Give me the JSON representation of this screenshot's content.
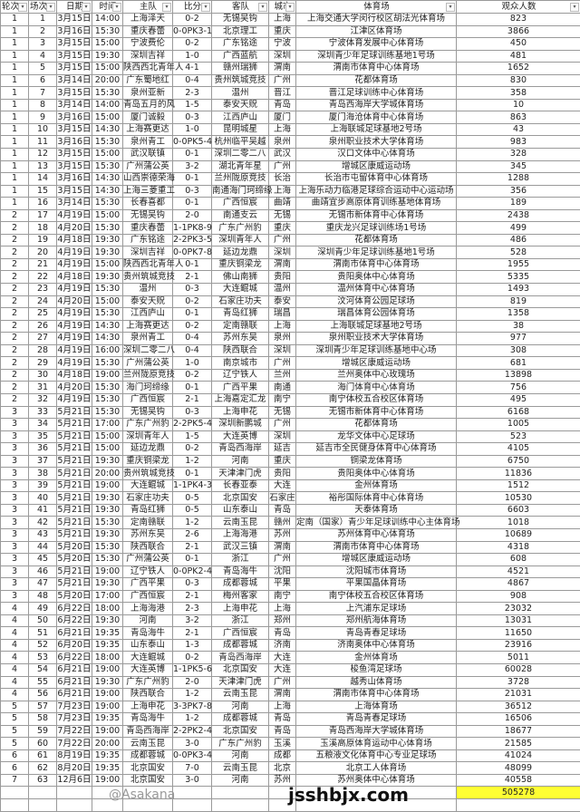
{
  "headers": [
    "轮次",
    "场次",
    "日期",
    "时间",
    "主队",
    "比分",
    "客队",
    "城市",
    "体育场",
    "观众人数"
  ],
  "filter_icon": "dropdown-arrow-icon",
  "rows": [
    [
      "1",
      "1",
      "3月15日",
      "14:00",
      "上海泽天",
      "0-2",
      "无锡吴钩",
      "上海",
      "上海交通大学闵行校区胡法光体育场",
      "823"
    ],
    [
      "1",
      "2",
      "3月16日",
      "15:30",
      "重庆春蕾",
      "0-0PK3-1",
      "北京理工",
      "重庆",
      "江津区体育场",
      "3866"
    ],
    [
      "1",
      "3",
      "3月15日",
      "15:00",
      "宁波费伦",
      "0-2",
      "广东铭途",
      "宁波",
      "宁波体育发展中心体育场",
      "450"
    ],
    [
      "1",
      "4",
      "3月15日",
      "19:30",
      "深圳吉祥",
      "1-0",
      "广西蓝航",
      "深圳",
      "深圳青少年足球训练基地1号场",
      "481"
    ],
    [
      "1",
      "5",
      "3月15日",
      "15:00",
      "陕西西北青年人",
      "4-1",
      "赣州瑞狮",
      "渭南",
      "渭南市体育中心体育场",
      "1652"
    ],
    [
      "1",
      "6",
      "3月14日",
      "20:00",
      "广东蜀地红",
      "0-4",
      "贵州筑城竞技",
      "广州",
      "花都体育场",
      "830"
    ],
    [
      "1",
      "7",
      "3月15日",
      "15:30",
      "泉州亚新",
      "2-3",
      "温州",
      "晋江",
      "晋江足球训练中心体育场",
      "358"
    ],
    [
      "1",
      "8",
      "3月14日",
      "14:00",
      "青岛五月的风",
      "1-5",
      "泰安天贶",
      "青岛",
      "青岛西海岸大学城体育场",
      "10"
    ],
    [
      "1",
      "9",
      "3月16日",
      "15:00",
      "厦门诚毅",
      "0-3",
      "江西庐山",
      "厦门",
      "厦门海沧体育中心体育场",
      "863"
    ],
    [
      "1",
      "10",
      "3月15日",
      "14:30",
      "上海赛更达",
      "1-0",
      "昆明城星",
      "上海",
      "上海联城足球基地2号场",
      "43"
    ],
    [
      "1",
      "11",
      "3月16日",
      "15:30",
      "泉州青工",
      "0-0PK5-4",
      "杭州临平吴越",
      "泉州",
      "泉州职业技术大学体育场",
      "983"
    ],
    [
      "1",
      "12",
      "3月15日",
      "15:00",
      "武汉联镇",
      "0-1",
      "深圳二零二八",
      "武汉",
      "汉口文体中心体育场",
      "328"
    ],
    [
      "1",
      "13",
      "3月15日",
      "15:30",
      "广州蒲公英",
      "3-2",
      "湖北青年星",
      "广州",
      "增城区康威运动场",
      "345"
    ],
    [
      "1",
      "14",
      "3月16日",
      "14:30",
      "山西崇德荣海",
      "0-1",
      "兰州陇原竞技",
      "长治",
      "长治市屯留体育中心体育场",
      "1288"
    ],
    [
      "1",
      "15",
      "3月15日",
      "14:30",
      "上海三菱重工",
      "0-3",
      "南通海门珂缔缘",
      "上海",
      "上海乐动力临港足球综合运动中心运动场",
      "356"
    ],
    [
      "1",
      "16",
      "3月14日",
      "15:30",
      "长春喜都",
      "0-1",
      "广西恒宸",
      "曲靖",
      "曲靖宜步高原体育训练基地体育场",
      "189"
    ],
    [
      "2",
      "17",
      "4月19日",
      "15:00",
      "无锡吴钩",
      "2-0",
      "南通支云",
      "无锡",
      "无锡市新体育中心体育场",
      "2438"
    ],
    [
      "2",
      "18",
      "4月20日",
      "15:30",
      "重庆春蕾",
      "1-1PK8-9",
      "广东广州豹",
      "重庆",
      "重庆龙兴足球训练场1号场",
      "499"
    ],
    [
      "2",
      "19",
      "4月18日",
      "19:30",
      "广东铭途",
      "2-2PK3-5",
      "深圳青年人",
      "广州",
      "花都体育场",
      "486"
    ],
    [
      "2",
      "20",
      "4月19日",
      "19:30",
      "深圳吉祥",
      "0-0PK7-8",
      "延边龙鼎",
      "深圳",
      "深圳青少年足球训练基地1号场",
      "528"
    ],
    [
      "2",
      "21",
      "4月19日",
      "15:00",
      "陕西西北青年人",
      "0-1",
      "重庆铜梁龙",
      "渭南",
      "渭南市体育中心体育场",
      "1955"
    ],
    [
      "2",
      "22",
      "4月18日",
      "19:30",
      "贵州筑城竞技",
      "2-1",
      "佛山南狮",
      "贵阳",
      "贵阳奥体中心体育场",
      "5335"
    ],
    [
      "2",
      "23",
      "4月19日",
      "15:30",
      "温州",
      "0-3",
      "大连鲲城",
      "温州",
      "温州体育中心体育场",
      "1493"
    ],
    [
      "2",
      "24",
      "4月20日",
      "15:00",
      "泰安天贶",
      "0-2",
      "石家庄功夫",
      "泰安",
      "汶河体育公园足球场",
      "819"
    ],
    [
      "2",
      "25",
      "4月19日",
      "15:30",
      "江西庐山",
      "0-1",
      "青岛红狮",
      "瑞昌",
      "瑞昌体育公园体育场",
      "1358"
    ],
    [
      "2",
      "26",
      "4月19日",
      "14:30",
      "上海赛更达",
      "0-2",
      "定南赣联",
      "上海",
      "上海联城足球基地2号场",
      "38"
    ],
    [
      "2",
      "27",
      "4月19日",
      "14:30",
      "泉州青工",
      "0-4",
      "苏州东吴",
      "泉州",
      "泉州职业技术大学体育场",
      "977"
    ],
    [
      "2",
      "28",
      "4月19日",
      "16:00",
      "深圳二零二八",
      "0-4",
      "陕西联合",
      "深圳",
      "深圳青少年足球训练基地中心场",
      "308"
    ],
    [
      "2",
      "29",
      "4月19日",
      "15:30",
      "广州蒲公英",
      "1-0",
      "南京城市",
      "广州",
      "增城区康威运动场",
      "681"
    ],
    [
      "2",
      "30",
      "4月18日",
      "19:00",
      "兰州陇原竞技",
      "0-2",
      "辽宁铁人",
      "兰州",
      "兰州奥体中心玫瑰场",
      "13898"
    ],
    [
      "2",
      "31",
      "4月20日",
      "15:30",
      "海门珂缔缘",
      "0-1",
      "广西平果",
      "南通",
      "海门体育中心体育场",
      "756"
    ],
    [
      "2",
      "32",
      "4月19日",
      "15:30",
      "广西恒宸",
      "2-1",
      "上海嘉定汇龙",
      "南宁",
      "南宁体校五合校区体育场",
      "495"
    ],
    [
      "3",
      "33",
      "5月21日",
      "15:30",
      "无锡吴钩",
      "0-3",
      "上海申花",
      "无锡",
      "无锡市新体育中心体育场",
      "6168"
    ],
    [
      "3",
      "34",
      "5月21日",
      "17:00",
      "广东广州豹",
      "2-2PK5-4",
      "深圳新鹏城",
      "广州",
      "花都体育场",
      "1005"
    ],
    [
      "3",
      "35",
      "5月21日",
      "15:00",
      "深圳青年人",
      "1-5",
      "大连英博",
      "深圳",
      "龙华文体中心足球场",
      "523"
    ],
    [
      "3",
      "36",
      "5月21日",
      "15:00",
      "延边龙鼎",
      "0-2",
      "青岛西海岸",
      "延吉",
      "延吉市全民健身体育中心体育场",
      "4105"
    ],
    [
      "3",
      "37",
      "5月21日",
      "19:30",
      "重庆铜梁龙",
      "1-2",
      "河南",
      "重庆",
      "铜梁龙体育场",
      "6750"
    ],
    [
      "3",
      "38",
      "5月21日",
      "20:00",
      "贵州筑城竞技",
      "0-1",
      "天津津门虎",
      "贵阳",
      "贵阳奥体中心体育场",
      "11836"
    ],
    [
      "3",
      "39",
      "5月21日",
      "19:00",
      "大连鲲城",
      "1-1PK4-3",
      "长春亚泰",
      "大连",
      "金州体育场",
      "1512"
    ],
    [
      "3",
      "40",
      "5月21日",
      "19:30",
      "石家庄功夫",
      "0-5",
      "北京国安",
      "石家庄",
      "裕彤国际体育中心体育场",
      "10530"
    ],
    [
      "3",
      "41",
      "5月21日",
      "19:30",
      "青岛红狮",
      "0-5",
      "山东泰山",
      "青岛",
      "天泰体育场",
      "6603"
    ],
    [
      "3",
      "42",
      "5月21日",
      "15:30",
      "定南赣联",
      "1-2",
      "云南玉昆",
      "赣州",
      "定南（国家）青少年足球训练中心主体育场",
      "1018"
    ],
    [
      "3",
      "43",
      "5月21日",
      "19:30",
      "苏州东吴",
      "2-6",
      "上海海港",
      "苏州",
      "苏州体育中心体育场",
      "10689"
    ],
    [
      "3",
      "44",
      "5月20日",
      "15:30",
      "陕西联合",
      "2-1",
      "武汉三镇",
      "渭南",
      "渭南市体育中心体育场",
      "4318"
    ],
    [
      "3",
      "45",
      "5月20日",
      "15:30",
      "广州蒲公英",
      "0-1",
      "浙江",
      "广州",
      "增城区康威运动场",
      "608"
    ],
    [
      "3",
      "46",
      "5月21日",
      "19:00",
      "辽宁铁人",
      "0-0PK2-4",
      "青岛海牛",
      "沈阳",
      "沈阳城市体育场",
      "4521"
    ],
    [
      "3",
      "47",
      "5月21日",
      "19:30",
      "广西平果",
      "0-3",
      "成都蓉城",
      "平果",
      "平果国晶体育场",
      "4867"
    ],
    [
      "3",
      "48",
      "5月20日",
      "17:00",
      "广西恒宸",
      "2-1",
      "梅州客家",
      "南宁",
      "南宁体校五合校区体育场",
      "908"
    ],
    [
      "4",
      "49",
      "6月22日",
      "18:00",
      "上海海港",
      "2-3",
      "上海申花",
      "上海",
      "上汽浦东足球场",
      "23032"
    ],
    [
      "4",
      "50",
      "6月22日",
      "19:30",
      "河南",
      "3-2",
      "浙江",
      "郑州",
      "郑州航海体育场",
      "13031"
    ],
    [
      "4",
      "51",
      "6月21日",
      "19:35",
      "青岛海牛",
      "2-1",
      "广西恒宸",
      "青岛",
      "青岛青春足球场",
      "11650"
    ],
    [
      "4",
      "52",
      "6月20日",
      "19:35",
      "山东泰山",
      "1-3",
      "成都蓉城",
      "济南",
      "济南奥体中心体育场",
      "23916"
    ],
    [
      "4",
      "53",
      "6月22日",
      "18:00",
      "大连鲲城",
      "0-2",
      "青岛西海岸",
      "大连",
      "金州体育场",
      "5011"
    ],
    [
      "4",
      "54",
      "6月21日",
      "19:00",
      "大连英博",
      "1-1PK5-6",
      "北京国安",
      "大连",
      "梭鱼湾足球场",
      "60028"
    ],
    [
      "4",
      "55",
      "6月21日",
      "19:30",
      "广东广州豹",
      "2-0",
      "天津津门虎",
      "广州",
      "越秀山体育场",
      "3728"
    ],
    [
      "4",
      "56",
      "6月21日",
      "19:00",
      "陕西联合",
      "1-2",
      "云南玉昆",
      "渭南",
      "渭南市体育中心体育场",
      "21031"
    ],
    [
      "5",
      "57",
      "7月23日",
      "19:00",
      "上海申花",
      "3-3PK7-8",
      "河南",
      "上海",
      "上海体育场",
      "36512"
    ],
    [
      "5",
      "58",
      "7月23日",
      "19:35",
      "青岛海牛",
      "1-2",
      "成都蓉城",
      "青岛",
      "青岛青春足球场",
      "16506"
    ],
    [
      "5",
      "59",
      "7月22日",
      "19:00",
      "青岛西海岸",
      "2-2PK2-4",
      "北京国安",
      "青岛",
      "青岛西海岸大学城体育场",
      "18677"
    ],
    [
      "5",
      "60",
      "7月22日",
      "20:00",
      "云南玉昆",
      "3-0",
      "广东广州豹",
      "玉溪",
      "玉溪高原体育运动中心体育场",
      "21585"
    ],
    [
      "6",
      "61",
      "8月19日",
      "19:35",
      "成都蓉城",
      "0-0PK3-4",
      "河南",
      "成都",
      "五粮液文化体育中心专业足球场",
      "41024"
    ],
    [
      "6",
      "62",
      "8月20日",
      "19:35",
      "北京国安",
      "7-0",
      "云南玉昆",
      "北京",
      "北京工人体育场",
      "48099"
    ],
    [
      "7",
      "63",
      "12月6日",
      "19:00",
      "北京国安",
      "3-0",
      "河南",
      "苏州",
      "苏州奥体中心体育场",
      "40558"
    ]
  ],
  "total_attendance": "505278",
  "total_highlight_color": "#ffff33",
  "watermark_site": "jsshbjx.com",
  "watermark_user": "@Asakana"
}
